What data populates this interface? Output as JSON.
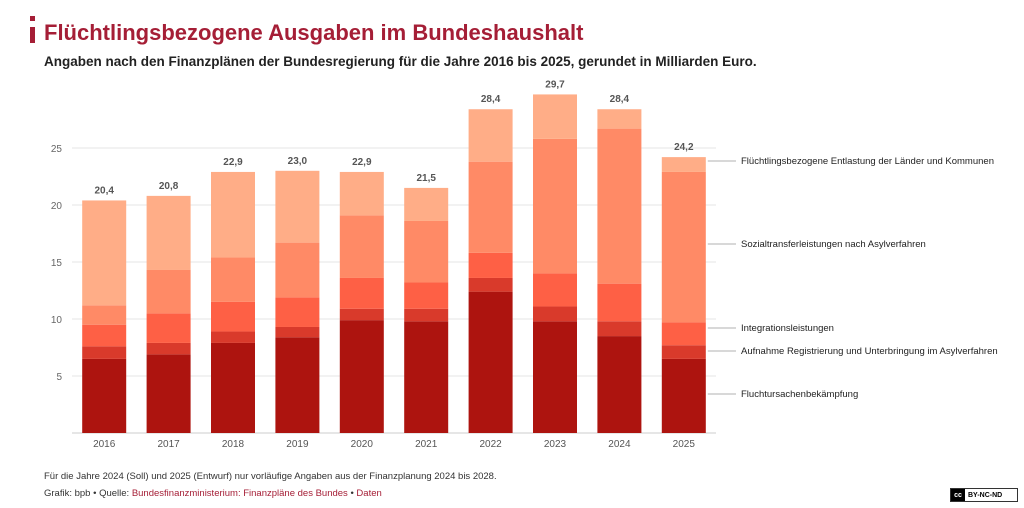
{
  "header": {
    "title": "Flüchtlingsbezogene Ausgaben im Bundeshaushalt",
    "subtitle": "Angaben nach den Finanzplänen der Bundesregierung für die Jahre 2016 bis 2025, gerundet in Milliarden Euro."
  },
  "colors": {
    "accent": "#a51e36",
    "series": [
      "#ad140f",
      "#d93a2b",
      "#fe6045",
      "#ff8a66",
      "#ffad87"
    ]
  },
  "chart_data": {
    "type": "bar",
    "stacked": true,
    "categories": [
      "2016",
      "2017",
      "2018",
      "2019",
      "2020",
      "2021",
      "2022",
      "2023",
      "2024",
      "2025"
    ],
    "series": [
      {
        "name": "Fluchtursachenbekämpfung",
        "values": [
          6.5,
          6.9,
          7.9,
          8.4,
          9.9,
          9.8,
          12.4,
          9.8,
          8.5,
          6.5
        ]
      },
      {
        "name": "Aufnahme Registrierung und Unterbringung im Asylverfahren",
        "values": [
          1.1,
          1.0,
          1.0,
          0.9,
          1.0,
          1.1,
          1.2,
          1.3,
          1.3,
          1.2
        ]
      },
      {
        "name": "Integrationsleistungen",
        "values": [
          1.9,
          2.6,
          2.6,
          2.6,
          2.7,
          2.3,
          2.2,
          2.9,
          3.3,
          2.0
        ]
      },
      {
        "name": "Sozialtransferleistungen nach Asylverfahren",
        "values": [
          1.7,
          3.8,
          3.9,
          4.8,
          5.5,
          5.4,
          8.0,
          11.8,
          13.6,
          13.2
        ]
      },
      {
        "name": "Flüchtlingsbezogene Entlastung der Länder und Kommunen",
        "values": [
          9.2,
          6.5,
          7.5,
          6.3,
          3.8,
          2.9,
          4.6,
          3.9,
          1.7,
          1.3
        ]
      }
    ],
    "totals": [
      "20,4",
      "20,8",
      "22,9",
      "23,0",
      "22,9",
      "21,5",
      "28,4",
      "29,7",
      "28,4",
      "24,2"
    ],
    "yticks": [
      "5",
      "10",
      "15",
      "20",
      "25"
    ],
    "ylim": [
      0,
      30
    ],
    "grid": true,
    "legend": "right"
  },
  "footer": {
    "note": "Für die Jahre 2024 (Soll) und 2025 (Entwurf) nur vorläufige Angaben aus der Finanzplanung 2024 bis 2028.",
    "credit_prefix": "Grafik: bpb • Quelle: ",
    "source_link": "Bundesfinanzministerium: Finanzpläne des Bundes",
    "separator": " • ",
    "data_link": "Daten",
    "license_icon": "cc",
    "license": "BY-NC-ND"
  }
}
